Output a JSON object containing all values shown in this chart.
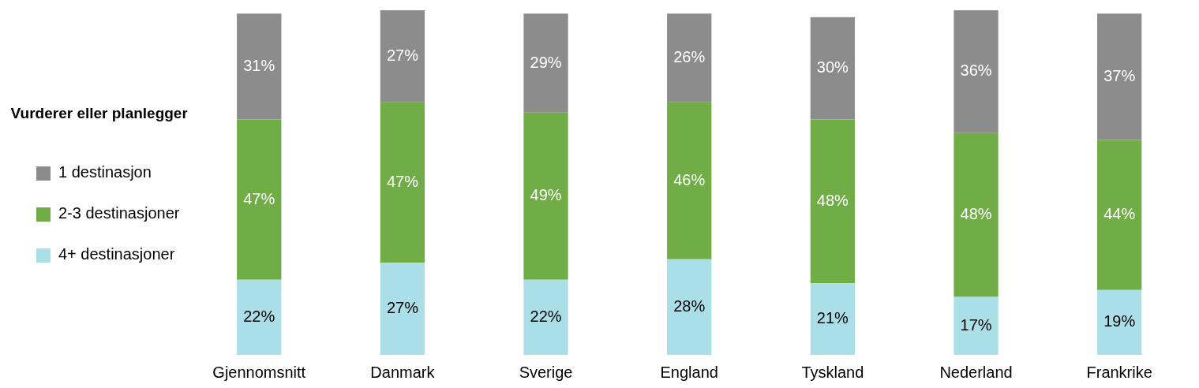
{
  "chart_data": {
    "type": "bar",
    "stacked": true,
    "categories": [
      "Gjennomsnitt",
      "Danmark",
      "Sverige",
      "England",
      "Tyskland",
      "Nederland",
      "Frankrike"
    ],
    "series": [
      {
        "name": "4+ destinasjoner",
        "color": "#abdfe8",
        "values": [
          22,
          27,
          22,
          28,
          21,
          17,
          19
        ],
        "value_labels": [
          "22%",
          "27%",
          "22%",
          "28%",
          "21%",
          "17%",
          "19%"
        ]
      },
      {
        "name": "2-3 destinasjoner",
        "color": "#70ad47",
        "values": [
          47,
          47,
          49,
          46,
          48,
          48,
          44
        ],
        "value_labels": [
          "47%",
          "47%",
          "49%",
          "46%",
          "48%",
          "48%",
          "44%"
        ]
      },
      {
        "name": "1 destinasjon",
        "color": "#8c8c8c",
        "values": [
          31,
          27,
          29,
          26,
          30,
          36,
          37
        ],
        "value_labels": [
          "31%",
          "27%",
          "29%",
          "26%",
          "30%",
          "36%",
          "37%"
        ]
      }
    ],
    "legend": "left",
    "legend_title": "Vurderer eller planlegger",
    "grid": false
  }
}
